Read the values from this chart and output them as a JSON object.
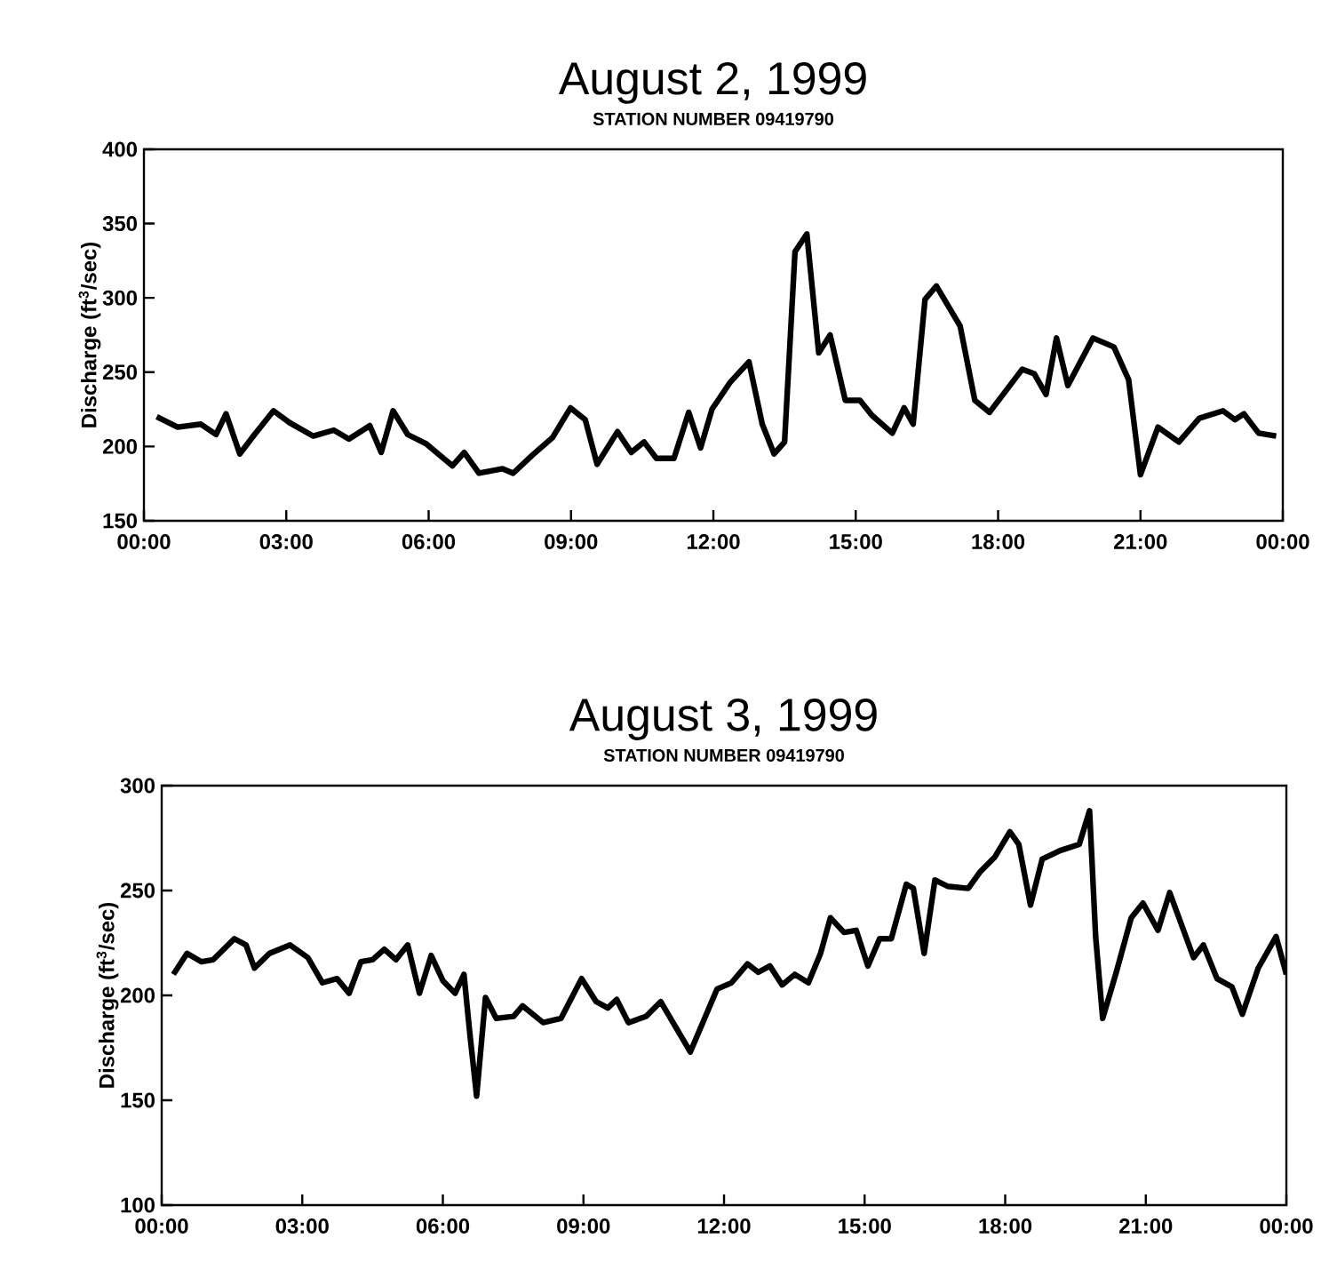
{
  "chart_data": [
    {
      "type": "line",
      "title": "August 2, 1999",
      "subtitle": "STATION NUMBER 09419790",
      "ylabel": "Discharge (ft$^{3}$/sec)",
      "color": "#000000",
      "x": [
        0.27,
        0.71,
        1.2,
        1.52,
        1.73,
        2.02,
        2.33,
        2.73,
        3.07,
        3.57,
        4.0,
        4.32,
        4.76,
        5.0,
        5.25,
        5.56,
        5.94,
        6.5,
        6.75,
        7.06,
        7.56,
        7.78,
        8.18,
        8.61,
        8.99,
        9.3,
        9.55,
        9.98,
        10.27,
        10.54,
        10.8,
        11.17,
        11.48,
        11.73,
        11.97,
        12.35,
        12.75,
        13.03,
        13.28,
        13.5,
        13.72,
        13.97,
        14.22,
        14.46,
        14.78,
        15.09,
        15.34,
        15.77,
        16.02,
        16.21,
        16.46,
        16.7,
        17.2,
        17.51,
        17.82,
        18.51,
        18.76,
        19.01,
        19.23,
        19.47,
        20.0,
        20.44,
        20.75,
        21.0,
        21.37,
        21.81,
        22.24,
        22.74,
        22.99,
        23.18,
        23.49,
        23.86
      ],
      "values": [
        220,
        213,
        215,
        208,
        222,
        195,
        208,
        224,
        216,
        207,
        211,
        205,
        214,
        196,
        224,
        208,
        202,
        187,
        196,
        182,
        185,
        182,
        194,
        206,
        226,
        218,
        188,
        210,
        196,
        203,
        192,
        192,
        223,
        199,
        225,
        243,
        257,
        215,
        195,
        203,
        331,
        343,
        263,
        275,
        231,
        231,
        221,
        209,
        226,
        215,
        299,
        308,
        281,
        231,
        223,
        252,
        249,
        235,
        273,
        241,
        273,
        267,
        245,
        181,
        213,
        203,
        219,
        224,
        218,
        222,
        209,
        207
      ],
      "xlim": [
        0,
        24
      ],
      "ylim": [
        150,
        400
      ],
      "xticks": [
        {
          "value": 0,
          "label": "00:00"
        },
        {
          "value": 3,
          "label": "03:00"
        },
        {
          "value": 6,
          "label": "06:00"
        },
        {
          "value": 9,
          "label": "09:00"
        },
        {
          "value": 12,
          "label": "12:00"
        },
        {
          "value": 15,
          "label": "15:00"
        },
        {
          "value": 18,
          "label": "18:00"
        },
        {
          "value": 21,
          "label": "21:00"
        },
        {
          "value": 24,
          "label": "00:00"
        }
      ],
      "yticks": [
        150,
        200,
        250,
        300,
        350,
        400
      ]
    },
    {
      "type": "line",
      "title": "August 3, 1999",
      "subtitle": "STATION NUMBER 09419790",
      "ylabel": "Discharge (ft$^{3}$/sec)",
      "color": "#000000",
      "x": [
        0.25,
        0.54,
        0.85,
        1.1,
        1.55,
        1.8,
        1.98,
        2.3,
        2.74,
        3.12,
        3.43,
        3.74,
        4.0,
        4.25,
        4.5,
        4.75,
        5.0,
        5.25,
        5.5,
        5.75,
        6.0,
        6.26,
        6.45,
        6.57,
        6.72,
        6.91,
        7.14,
        7.51,
        7.7,
        8.14,
        8.52,
        8.96,
        9.27,
        9.52,
        9.71,
        9.96,
        10.34,
        10.65,
        11.28,
        11.85,
        12.16,
        12.5,
        12.73,
        12.98,
        13.24,
        13.51,
        13.8,
        14.06,
        14.27,
        14.56,
        14.82,
        15.07,
        15.32,
        15.57,
        15.89,
        16.04,
        16.27,
        16.5,
        16.77,
        17.21,
        17.47,
        17.78,
        18.1,
        18.29,
        18.54,
        18.79,
        19.17,
        19.58,
        19.8,
        19.93,
        20.08,
        20.37,
        20.69,
        20.94,
        21.26,
        21.51,
        22.02,
        22.23,
        22.52,
        22.84,
        23.06,
        23.4,
        23.78,
        24.0
      ],
      "values": [
        210,
        220,
        216,
        217,
        227,
        224,
        213,
        220,
        224,
        218,
        206,
        208,
        201,
        216,
        217,
        222,
        217,
        224,
        201,
        219,
        207,
        201,
        210,
        183,
        152,
        199,
        189,
        190,
        195,
        187,
        189,
        208,
        197,
        194,
        198,
        187,
        190,
        197,
        173,
        203,
        206,
        215,
        211,
        214,
        205,
        210,
        206,
        220,
        237,
        230,
        231,
        214,
        227,
        227,
        253,
        251,
        220,
        255,
        252,
        251,
        259,
        266,
        278,
        272,
        243,
        265,
        269,
        272,
        288,
        228,
        189,
        211,
        237,
        244,
        231,
        249,
        218,
        224,
        208,
        204,
        191,
        213,
        228,
        210
      ],
      "xlim": [
        0,
        24
      ],
      "ylim": [
        100,
        300
      ],
      "xticks": [
        {
          "value": 0,
          "label": "00:00"
        },
        {
          "value": 3,
          "label": "03:00"
        },
        {
          "value": 6,
          "label": "06:00"
        },
        {
          "value": 9,
          "label": "09:00"
        },
        {
          "value": 12,
          "label": "12:00"
        },
        {
          "value": 15,
          "label": "15:00"
        },
        {
          "value": 18,
          "label": "18:00"
        },
        {
          "value": 21,
          "label": "21:00"
        },
        {
          "value": 24,
          "label": "00:00"
        }
      ],
      "yticks": [
        100,
        150,
        200,
        250,
        300
      ]
    }
  ]
}
